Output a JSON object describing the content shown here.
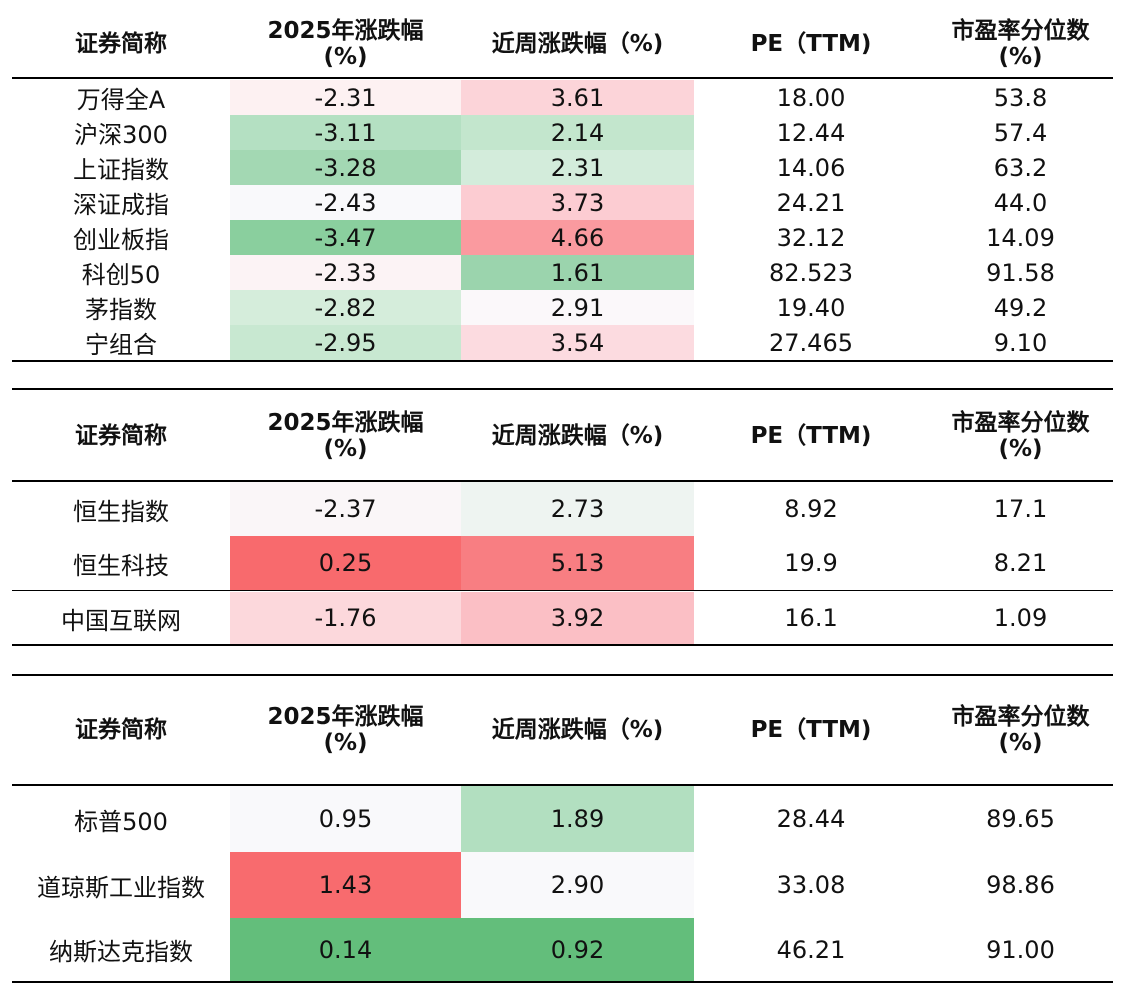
{
  "header": {
    "name": "证券简称",
    "ytd": "2025年涨跌幅\n(%)",
    "week": "近周涨跌幅（%)",
    "pe": "PE（TTM)",
    "pct": "市盈率分位数\n(%)"
  },
  "tables": [
    {
      "rows": [
        {
          "name": "万得全A",
          "ytd": "-2.31",
          "week": "3.61",
          "pe": "18.00",
          "pct": "53.8",
          "ytd_color": "#FDF1F2",
          "week_color": "#FCD4D9"
        },
        {
          "name": "沪深300",
          "ytd": "-3.11",
          "week": "2.14",
          "pe": "12.44",
          "pct": "57.4",
          "ytd_color": "#B4E0C2",
          "week_color": "#C3E6CD"
        },
        {
          "name": "上证指数",
          "ytd": "-3.28",
          "week": "2.31",
          "pe": "14.06",
          "pct": "63.2",
          "ytd_color": "#A3D8B3",
          "week_color": "#D3ECDB"
        },
        {
          "name": "深证成指",
          "ytd": "-2.43",
          "week": "3.73",
          "pe": "24.21",
          "pct": "44.0",
          "ytd_color": "#F9F9FB",
          "week_color": "#FCCCD2"
        },
        {
          "name": "创业板指",
          "ytd": "-3.47",
          "week": "4.66",
          "pe": "32.12",
          "pct": "14.09",
          "ytd_color": "#8ACF9E",
          "week_color": "#FA9A9F"
        },
        {
          "name": "科创50",
          "ytd": "-2.33",
          "week": "1.61",
          "pe": "82.523",
          "pct": "91.58",
          "ytd_color": "#FCF3F5",
          "week_color": "#9BD4AD"
        },
        {
          "name": "茅指数",
          "ytd": "-2.82",
          "week": "2.91",
          "pe": "19.40",
          "pct": "49.2",
          "ytd_color": "#D5EDDB",
          "week_color": "#FBF8FA"
        },
        {
          "name": "宁组合",
          "ytd": "-2.95",
          "week": "3.54",
          "pe": "27.465",
          "pct": "9.10",
          "ytd_color": "#C8E8D1",
          "week_color": "#FCDBE0"
        }
      ]
    },
    {
      "rows": [
        {
          "name": "恒生指数",
          "ytd": "-2.37",
          "week": "2.73",
          "pe": "8.92",
          "pct": "17.1",
          "ytd_color": "#FAF6F8",
          "week_color": "#EEF4F1"
        },
        {
          "name": "恒生科技",
          "ytd": "0.25",
          "week": "5.13",
          "pe": "19.9",
          "pct": "8.21",
          "ytd_color": "#F86A6D",
          "week_color": "#F87E82"
        },
        {
          "name": "中国互联网",
          "ytd": "-1.76",
          "week": "3.92",
          "pe": "16.1",
          "pct": "1.09",
          "ytd_color": "#FCD8DC",
          "week_color": "#FBBFC5"
        }
      ]
    },
    {
      "rows": [
        {
          "name": "标普500",
          "ytd": "0.95",
          "week": "1.89",
          "pe": "28.44",
          "pct": "89.65",
          "ytd_color": "#F9F9FB",
          "week_color": "#B2DFC0"
        },
        {
          "name": "道琼斯工业指数",
          "ytd": "1.43",
          "week": "2.90",
          "pe": "33.08",
          "pct": "98.86",
          "ytd_color": "#F86B6E",
          "week_color": "#F9F9FB"
        },
        {
          "name": "纳斯达克指数",
          "ytd": "0.14",
          "week": "0.92",
          "pe": "46.21",
          "pct": "91.00",
          "ytd_color": "#63BE7B",
          "week_color": "#63BE7B"
        }
      ]
    }
  ]
}
